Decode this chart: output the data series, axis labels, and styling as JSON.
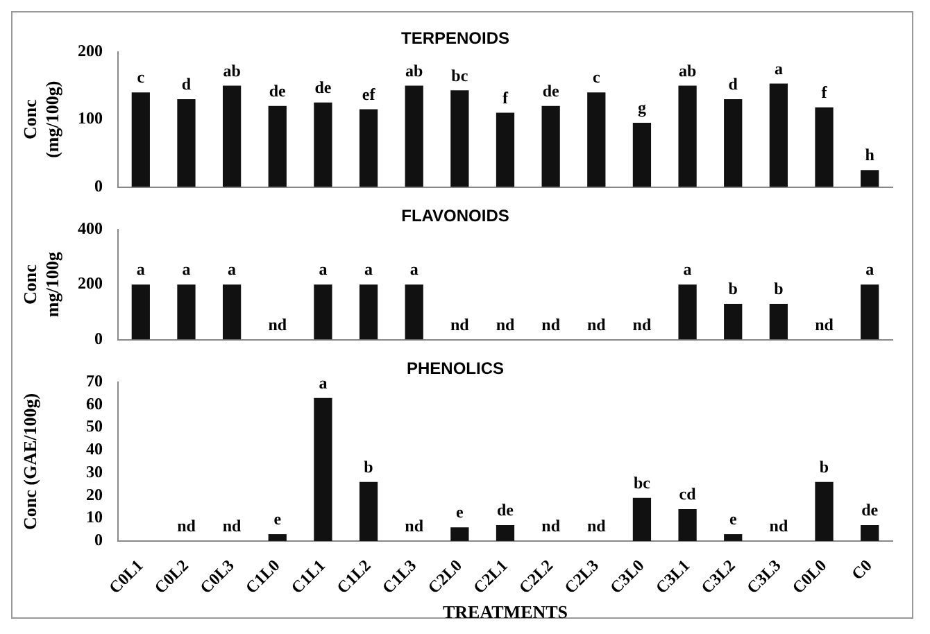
{
  "chart_data": [
    {
      "type": "bar",
      "title": "TERPENOIDS",
      "ylabel": "Conc\n(mg/100g)",
      "categories": [
        null,
        null,
        null,
        null,
        null,
        null,
        null,
        null,
        null,
        null,
        null,
        null,
        null,
        null,
        null,
        null,
        null
      ],
      "values": [
        140,
        130,
        150,
        120,
        125,
        115,
        150,
        143,
        110,
        120,
        140,
        95,
        150,
        130,
        153,
        118,
        25
      ],
      "value_labels": [
        "c",
        "d",
        "ab",
        "de",
        "de",
        "ef",
        "ab",
        "bc",
        "f",
        "de",
        "c",
        "g",
        "ab",
        "d",
        "a",
        "f",
        "h"
      ],
      "color": "#111111",
      "ylim": [
        0,
        200
      ],
      "yticks": [
        0,
        100,
        200
      ],
      "tick_labels": "y"
    },
    {
      "type": "bar",
      "title": "FLAVONOIDS",
      "ylabel": "Conc\nmg/100g",
      "categories": [
        null,
        null,
        null,
        null,
        null,
        null,
        null,
        null,
        null,
        null,
        null,
        null,
        null,
        null,
        null,
        null,
        null
      ],
      "values": [
        200,
        200,
        200,
        0,
        200,
        200,
        200,
        0,
        0,
        0,
        0,
        0,
        200,
        130,
        130,
        0,
        200
      ],
      "value_labels": [
        "a",
        "a",
        "a",
        "nd",
        "a",
        "a",
        "a",
        "nd",
        "nd",
        "nd",
        "nd",
        "nd",
        "a",
        "b",
        "b",
        "nd",
        "a"
      ],
      "color": "#111111",
      "ylim": [
        0,
        400
      ],
      "yticks": [
        0,
        200,
        400
      ],
      "tick_labels": "y"
    },
    {
      "type": "bar",
      "title": "PHENOLICS",
      "xlabel": "TREATMENTS",
      "ylabel": "Conc (GAE/100g)",
      "categories": [
        "C0L1",
        "C0L2",
        "C0L3",
        "C1L0",
        "C1L1",
        "C1L2",
        "C1L3",
        "C2L0",
        "C2L1",
        "C2L2",
        "C2L3",
        "C3L0",
        "C3L1",
        "C3L2",
        "C3L3",
        "C0L0",
        "C0"
      ],
      "values": [
        null,
        0,
        0,
        3,
        63,
        26,
        0,
        6,
        7,
        0,
        0,
        19,
        14,
        3,
        0,
        26,
        7
      ],
      "value_labels": [
        null,
        "nd",
        "nd",
        "e",
        "a",
        "b",
        "nd",
        "e",
        "de",
        "nd",
        "nd",
        "bc",
        "cd",
        "e",
        "nd",
        "b",
        "de"
      ],
      "color": "#111111",
      "ylim": [
        0,
        70
      ],
      "yticks": [
        0,
        10,
        20,
        30,
        40,
        50,
        60,
        70
      ]
    }
  ]
}
